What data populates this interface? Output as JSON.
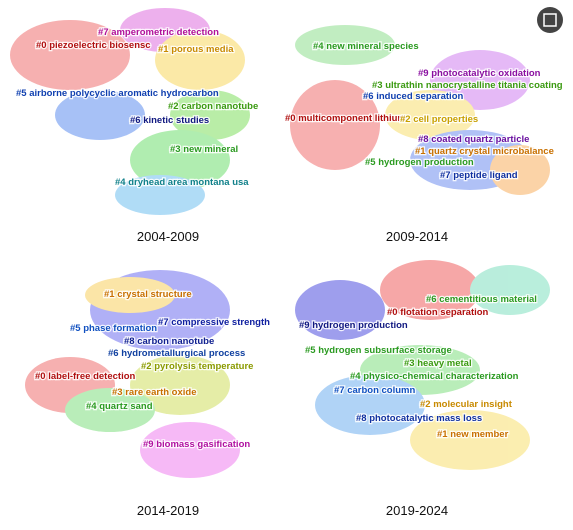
{
  "panels": [
    {
      "period": "2004-2009",
      "clusters": [
        {
          "label": "#7 amperometric detection",
          "color": "#b0109a"
        },
        {
          "label": "#0 piezoelectric biosensc",
          "color": "#b01010"
        },
        {
          "label": "#1 porous media",
          "color": "#c88a00"
        },
        {
          "label": "#5 airborne polycyclic aromatic hydrocarbon",
          "color": "#1040b0"
        },
        {
          "label": "#2 carbon nanotube",
          "color": "#3a9a10"
        },
        {
          "label": "#6 kinetic studies",
          "color": "#101880"
        },
        {
          "label": "#3 new mineral",
          "color": "#2a9a20"
        },
        {
          "label": "#4 dryhead area montana usa",
          "color": "#10808a"
        }
      ]
    },
    {
      "period": "2009-2014",
      "clusters": [
        {
          "label": "#4 new mineral species",
          "color": "#2a9a20"
        },
        {
          "label": "#9 photocatalytic oxidation",
          "color": "#8a10a0"
        },
        {
          "label": "#3 ultrathin nanocrystalline titania coating",
          "color": "#3a9a10"
        },
        {
          "label": "#6 induced separation",
          "color": "#1040b0"
        },
        {
          "label": "#0 multicomponent lithium",
          "color": "#b01010"
        },
        {
          "label": "#2 cell properties",
          "color": "#c8a000"
        },
        {
          "label": "#8 coated quartz particle",
          "color": "#6a10a0"
        },
        {
          "label": "#1 quartz crystal microbalance",
          "color": "#c87000"
        },
        {
          "label": "#5 hydrogen production",
          "color": "#2a9a20"
        },
        {
          "label": "#7 peptide ligand",
          "color": "#1030a0"
        }
      ]
    },
    {
      "period": "2014-2019",
      "clusters": [
        {
          "label": "#1 crystal structure",
          "color": "#c87000"
        },
        {
          "label": "#7 compressive strength",
          "color": "#1020a0"
        },
        {
          "label": "#5 phase formation",
          "color": "#1050c0"
        },
        {
          "label": "#8 carbon nanotube",
          "color": "#102090"
        },
        {
          "label": "#6 hydrometallurgical process",
          "color": "#1040a0"
        },
        {
          "label": "#0 label-free detection",
          "color": "#b01010"
        },
        {
          "label": "#2 pyrolysis temperature",
          "color": "#8a9a00"
        },
        {
          "label": "#3 rare earth oxide",
          "color": "#c87000"
        },
        {
          "label": "#4 quartz sand",
          "color": "#2a9a20"
        },
        {
          "label": "#9 biomass gasification",
          "color": "#b010a0"
        }
      ]
    },
    {
      "period": "2019-2024",
      "clusters": [
        {
          "label": "#6 cementitious material",
          "color": "#2a9a20"
        },
        {
          "label": "#0 flotation separation",
          "color": "#b01010"
        },
        {
          "label": "#9 hydrogen production",
          "color": "#101880"
        },
        {
          "label": "#5 hydrogen subsurface storage",
          "color": "#2a9a20"
        },
        {
          "label": "#3 heavy metal",
          "color": "#3a9a10"
        },
        {
          "label": "#4 physico-chemical characterization",
          "color": "#2a9a20"
        },
        {
          "label": "#7 carbon column",
          "color": "#1050c0"
        },
        {
          "label": "#2 molecular insight",
          "color": "#c88a00"
        },
        {
          "label": "#8 photocatalytic mass loss",
          "color": "#1030a0"
        },
        {
          "label": "#1 new member",
          "color": "#c87000"
        }
      ]
    }
  ]
}
